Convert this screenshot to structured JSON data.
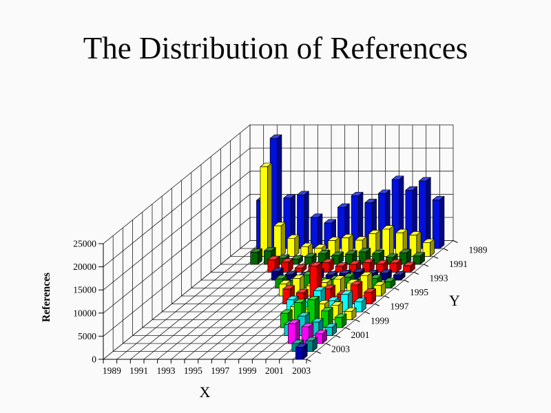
{
  "slide": {
    "title": "The Distribution of References",
    "background": "#fafafa"
  },
  "chart_data": {
    "type": "bar",
    "subtype": "3d-column",
    "title": "The Distribution of References",
    "legend": "none",
    "grid": "on",
    "floor_color": "#a0a0a0",
    "wall_color": "#fdfdfd",
    "x_axis": {
      "title": "X",
      "categories": [
        1989,
        1990,
        1991,
        1992,
        1993,
        1994,
        1995,
        1996,
        1997,
        1998,
        1999,
        2000,
        2001,
        2002,
        2003
      ],
      "tick_labels": [
        "1989",
        "1991",
        "1993",
        "1995",
        "1997",
        "1999",
        "2001",
        "2003"
      ]
    },
    "y_axis": {
      "title": "Y",
      "categories": [
        1989,
        1990,
        1991,
        1992,
        1993,
        1994,
        1995,
        1996,
        1997,
        1998,
        1999,
        2000,
        2001,
        2002,
        2003
      ],
      "tick_labels": [
        "1989",
        "1991",
        "1993",
        "1995",
        "1997",
        "1999",
        "2001",
        "2003"
      ]
    },
    "z_axis": {
      "title": "References",
      "min": 0,
      "max": 25000,
      "tick_step": 5000,
      "tick_labels": [
        "0",
        "5000",
        "10000",
        "15000",
        "20000",
        "25000"
      ]
    },
    "series": [
      {
        "year": 1989,
        "color": "#0010dd",
        "values": [
          0,
          10400,
          23800,
          10900,
          11600,
          6700,
          5500,
          8900,
          11400,
          9900,
          11900,
          14900,
          12600,
          14600,
          10500
        ]
      },
      {
        "year": 1990,
        "color": "#ffff00",
        "values": [
          0,
          0,
          19400,
          6600,
          3900,
          2100,
          1800,
          3400,
          4000,
          3500,
          4900,
          5900,
          5100,
          4600,
          3000
        ]
      },
      {
        "year": 1991,
        "color": "#006600",
        "values": [
          0,
          0,
          2600,
          2900,
          1300,
          1100,
          1600,
          2300,
          1900,
          2200,
          2700,
          2300,
          1500,
          2500,
          1800
        ]
      },
      {
        "year": 1992,
        "color": "#ee0000",
        "values": [
          0,
          0,
          0,
          0,
          2700,
          2200,
          900,
          1400,
          2100,
          1300,
          1700,
          2100,
          1800,
          2000,
          1400
        ]
      },
      {
        "year": 1993,
        "color": "#000080",
        "values": [
          0,
          0,
          0,
          0,
          0,
          1900,
          1200,
          1000,
          1700,
          1100,
          1400,
          1700,
          1400,
          1500,
          1100
        ]
      },
      {
        "year": 1994,
        "color": "#009900",
        "values": [
          0,
          0,
          0,
          0,
          0,
          0,
          2000,
          1600,
          2800,
          1500,
          1900,
          2400,
          1900,
          2100,
          1400
        ]
      },
      {
        "year": 1995,
        "color": "#ffff00",
        "values": [
          0,
          0,
          0,
          0,
          0,
          0,
          0,
          2600,
          3800,
          2200,
          2900,
          3600,
          2800,
          4400,
          2300
        ]
      },
      {
        "year": 1996,
        "color": "#ff0000",
        "values": [
          0,
          0,
          0,
          0,
          0,
          0,
          0,
          0,
          3200,
          2400,
          8200,
          3300,
          2100,
          4100,
          2500
        ]
      },
      {
        "year": 1997,
        "color": "#00ffff",
        "values": [
          0,
          0,
          0,
          0,
          0,
          0,
          0,
          0,
          0,
          2600,
          2100,
          4600,
          2400,
          3800,
          2200
        ]
      },
      {
        "year": 1998,
        "color": "#ffff00",
        "values": [
          0,
          0,
          0,
          0,
          0,
          0,
          0,
          0,
          0,
          0,
          2800,
          2300,
          3400,
          3100,
          1800
        ]
      },
      {
        "year": 1999,
        "color": "#00cc00",
        "values": [
          0,
          0,
          0,
          0,
          0,
          0,
          0,
          0,
          0,
          0,
          3100,
          5400,
          6000,
          3600,
          2200
        ]
      },
      {
        "year": 2000,
        "color": "#00cccc",
        "values": [
          0,
          0,
          0,
          0,
          0,
          0,
          0,
          0,
          0,
          0,
          0,
          2400,
          4200,
          2900,
          1800
        ]
      },
      {
        "year": 2001,
        "color": "#ff00ff",
        "values": [
          0,
          0,
          0,
          0,
          0,
          0,
          0,
          0,
          0,
          0,
          0,
          0,
          4300,
          3600,
          2100
        ]
      },
      {
        "year": 2002,
        "color": "#008b8b",
        "values": [
          0,
          0,
          0,
          0,
          0,
          0,
          0,
          0,
          0,
          0,
          0,
          0,
          0,
          1700,
          2300
        ]
      },
      {
        "year": 2003,
        "color": "#0000b0",
        "values": [
          0,
          0,
          0,
          0,
          0,
          0,
          0,
          0,
          0,
          0,
          0,
          0,
          0,
          0,
          2600
        ]
      }
    ]
  }
}
